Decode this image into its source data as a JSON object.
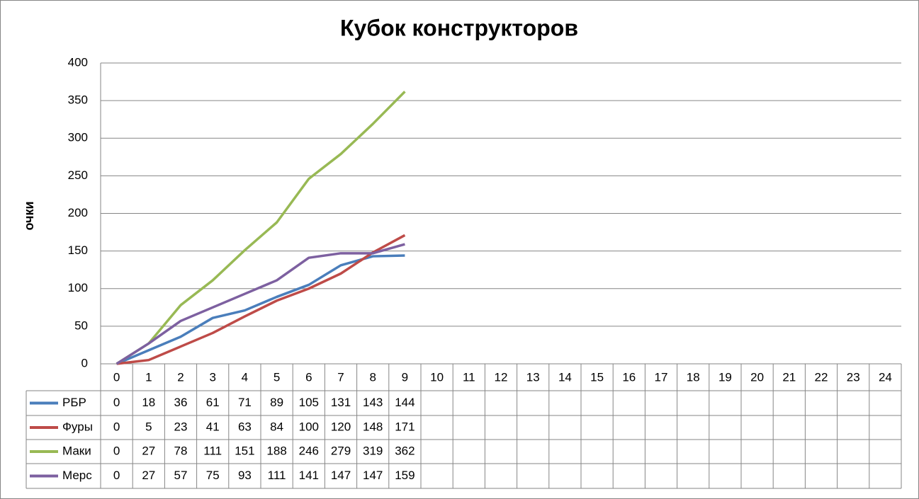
{
  "chart_data": {
    "type": "line",
    "title": "Кубок конструкторов",
    "y_label": "очки",
    "categories": [
      "0",
      "1",
      "2",
      "3",
      "4",
      "5",
      "6",
      "7",
      "8",
      "9",
      "10",
      "11",
      "12",
      "13",
      "14",
      "15",
      "16",
      "17",
      "18",
      "19",
      "20",
      "21",
      "22",
      "23",
      "24"
    ],
    "series": [
      {
        "name": "РБР",
        "color": "#4a7ebb",
        "values": [
          0,
          18,
          36,
          61,
          71,
          89,
          105,
          131,
          143,
          144,
          null,
          null,
          null,
          null,
          null,
          null,
          null,
          null,
          null,
          null,
          null,
          null,
          null,
          null,
          null
        ]
      },
      {
        "name": "Фуры",
        "color": "#be4b48",
        "values": [
          0,
          5,
          23,
          41,
          63,
          84,
          100,
          120,
          148,
          171,
          null,
          null,
          null,
          null,
          null,
          null,
          null,
          null,
          null,
          null,
          null,
          null,
          null,
          null,
          null
        ]
      },
      {
        "name": "Маки",
        "color": "#98b954",
        "values": [
          0,
          27,
          78,
          111,
          151,
          188,
          246,
          279,
          319,
          362,
          null,
          null,
          null,
          null,
          null,
          null,
          null,
          null,
          null,
          null,
          null,
          null,
          null,
          null,
          null
        ]
      },
      {
        "name": "Мерс",
        "color": "#7d60a0",
        "values": [
          0,
          27,
          57,
          75,
          93,
          111,
          141,
          147,
          147,
          159,
          null,
          null,
          null,
          null,
          null,
          null,
          null,
          null,
          null,
          null,
          null,
          null,
          null,
          null,
          null
        ]
      }
    ],
    "ylim": [
      0,
      400
    ],
    "yticks": [
      0,
      50,
      100,
      150,
      200,
      250,
      300,
      350,
      400
    ],
    "grid": true,
    "data_table": true
  }
}
